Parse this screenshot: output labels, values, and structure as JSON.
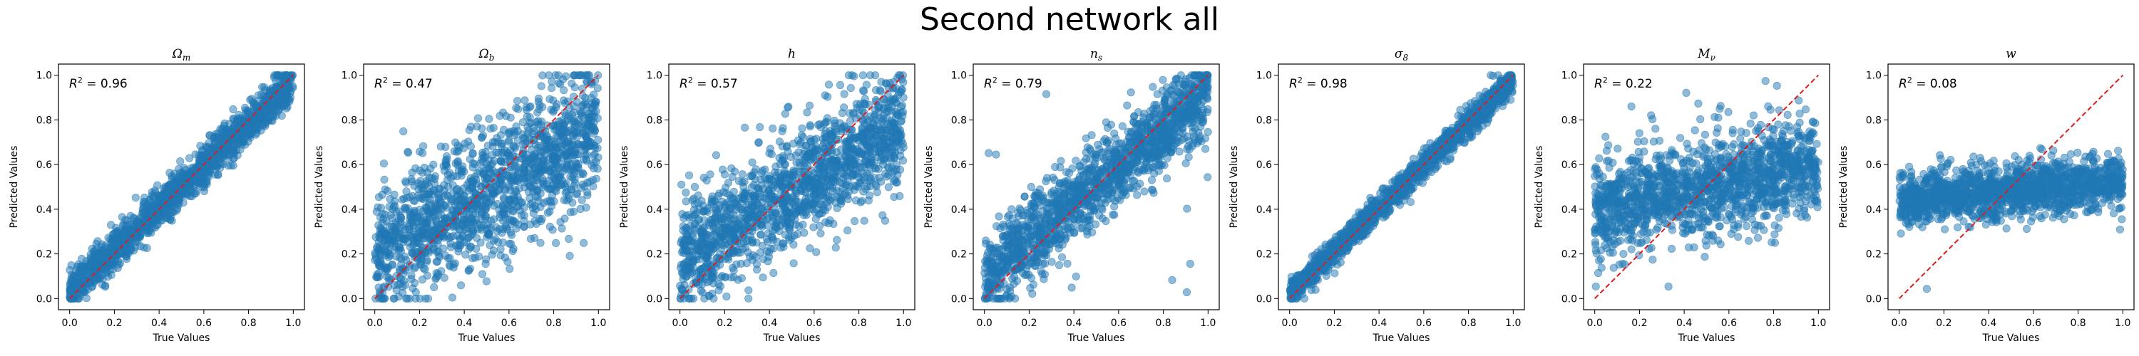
{
  "suptitle": "Second network all",
  "colors": {
    "points": "#1f77b4",
    "identity_line": "#e31a1c",
    "axes": "#000000"
  },
  "chart_data": [
    {
      "type": "scatter",
      "title": "Ωm",
      "title_html": "Ω<tspan font-size='12' dy='4'>m</tspan>",
      "r2_value": "0.96",
      "r2_text": "R² = 0.96",
      "xlabel": "True Values",
      "ylabel": "Predicted Values",
      "xlim": [
        -0.05,
        1.05
      ],
      "ylim": [
        -0.05,
        1.05
      ],
      "xticks": [
        "0.0",
        "0.2",
        "0.4",
        "0.6",
        "0.8",
        "1.0"
      ],
      "yticks": [
        "0.0",
        "0.2",
        "0.4",
        "0.6",
        "0.8",
        "1.0"
      ],
      "identity_line": {
        "x": [
          0,
          1
        ],
        "y": [
          0,
          1
        ]
      },
      "points": {
        "model": "linear",
        "slope": 0.94,
        "intercept": 0.03,
        "noise": 0.045,
        "outliers": 0.0,
        "x_range": [
          0,
          1
        ],
        "y_clip": [
          0,
          1
        ],
        "count": 1500,
        "seed": 1
      }
    },
    {
      "type": "scatter",
      "title": "Ωb",
      "title_html": "Ω<tspan font-size='12' dy='4'>b</tspan>",
      "r2_value": "0.47",
      "r2_text": "R² = 0.47",
      "xlabel": "True Values",
      "ylabel": "Predicted Values",
      "xlim": [
        -0.05,
        1.05
      ],
      "ylim": [
        -0.05,
        1.05
      ],
      "xticks": [
        "0.0",
        "0.2",
        "0.4",
        "0.6",
        "0.8",
        "1.0"
      ],
      "yticks": [
        "0.0",
        "0.2",
        "0.4",
        "0.6",
        "0.8",
        "1.0"
      ],
      "identity_line": {
        "x": [
          0,
          1
        ],
        "y": [
          0,
          1
        ]
      },
      "points": {
        "model": "linear",
        "slope": 0.55,
        "intercept": 0.2,
        "noise": 0.15,
        "outliers": 0.0,
        "x_range": [
          0,
          1
        ],
        "y_clip": [
          0,
          1
        ],
        "count": 1500,
        "seed": 2
      }
    },
    {
      "type": "scatter",
      "title": "h",
      "title_html": "h",
      "r2_value": "0.57",
      "r2_text": "R² = 0.57",
      "xlabel": "True Values",
      "ylabel": "Predicted Values",
      "xlim": [
        -0.05,
        1.05
      ],
      "ylim": [
        -0.05,
        1.05
      ],
      "xticks": [
        "0.0",
        "0.2",
        "0.4",
        "0.6",
        "0.8",
        "1.0"
      ],
      "yticks": [
        "0.0",
        "0.2",
        "0.4",
        "0.6",
        "0.8",
        "1.0"
      ],
      "identity_line": {
        "x": [
          0,
          1
        ],
        "y": [
          0,
          1
        ]
      },
      "points": {
        "model": "linear",
        "slope": 0.62,
        "intercept": 0.17,
        "noise": 0.13,
        "outliers": 0.0,
        "x_range": [
          0,
          1
        ],
        "y_clip": [
          0,
          1
        ],
        "count": 1500,
        "seed": 3
      }
    },
    {
      "type": "scatter",
      "title": "ns",
      "title_html": "n<tspan font-size='12' dy='4'>s</tspan>",
      "r2_value": "0.79",
      "r2_text": "R² = 0.79",
      "xlabel": "True Values",
      "ylabel": "Predicted Values",
      "xlim": [
        -0.05,
        1.05
      ],
      "ylim": [
        -0.05,
        1.05
      ],
      "xticks": [
        "0.0",
        "0.2",
        "0.4",
        "0.6",
        "0.8",
        "1.0"
      ],
      "yticks": [
        "0.0",
        "0.2",
        "0.4",
        "0.6",
        "0.8",
        "1.0"
      ],
      "identity_line": {
        "x": [
          0,
          1
        ],
        "y": [
          0,
          1
        ]
      },
      "points": {
        "model": "linear",
        "slope": 0.82,
        "intercept": 0.1,
        "noise": 0.09,
        "outliers": 0.02,
        "x_range": [
          0,
          1
        ],
        "y_clip": [
          0,
          1
        ],
        "count": 1500,
        "seed": 4
      }
    },
    {
      "type": "scatter",
      "title": "σ8",
      "title_html": "σ<tspan font-size='12' dy='4'>8</tspan>",
      "r2_value": "0.98",
      "r2_text": "R² = 0.98",
      "xlabel": "True Values",
      "ylabel": "Predicted Values",
      "xlim": [
        -0.05,
        1.05
      ],
      "ylim": [
        -0.05,
        1.05
      ],
      "xticks": [
        "0.0",
        "0.2",
        "0.4",
        "0.6",
        "0.8",
        "1.0"
      ],
      "yticks": [
        "0.0",
        "0.2",
        "0.4",
        "0.6",
        "0.8",
        "1.0"
      ],
      "identity_line": {
        "x": [
          0,
          1
        ],
        "y": [
          0,
          1
        ]
      },
      "points": {
        "model": "linear",
        "slope": 0.96,
        "intercept": 0.02,
        "noise": 0.03,
        "outliers": 0.0,
        "x_range": [
          0,
          1
        ],
        "y_clip": [
          0,
          1
        ],
        "count": 1500,
        "seed": 5
      }
    },
    {
      "type": "scatter",
      "title": "Mν",
      "title_html": "M<tspan font-size='12' dy='4'>ν</tspan>",
      "r2_value": "0.22",
      "r2_text": "R² = 0.22",
      "xlabel": "True Values",
      "ylabel": "Predicted Values",
      "xlim": [
        -0.05,
        1.05
      ],
      "ylim": [
        -0.05,
        1.05
      ],
      "xticks": [
        "0.0",
        "0.2",
        "0.4",
        "0.6",
        "0.8",
        "1.0"
      ],
      "yticks": [
        "0.0",
        "0.2",
        "0.4",
        "0.6",
        "0.8",
        "1.0"
      ],
      "identity_line": {
        "x": [
          0,
          1
        ],
        "y": [
          0,
          1
        ]
      },
      "points": {
        "model": "linear",
        "slope": 0.2,
        "intercept": 0.4,
        "noise": 0.11,
        "outliers": 0.01,
        "x_range": [
          0,
          1
        ],
        "y_clip": [
          0,
          1
        ],
        "count": 1500,
        "seed": 6
      }
    },
    {
      "type": "scatter",
      "title": "w",
      "title_html": "w",
      "r2_value": "0.08",
      "r2_text": "R² = 0.08",
      "xlabel": "True Values",
      "ylabel": "Predicted Values",
      "xlim": [
        -0.05,
        1.05
      ],
      "ylim": [
        -0.05,
        1.05
      ],
      "xticks": [
        "0.0",
        "0.2",
        "0.4",
        "0.6",
        "0.8",
        "1.0"
      ],
      "yticks": [
        "0.0",
        "0.2",
        "0.4",
        "0.6",
        "0.8",
        "1.0"
      ],
      "identity_line": {
        "x": [
          0,
          1
        ],
        "y": [
          0,
          1
        ]
      },
      "points": {
        "model": "linear",
        "slope": 0.08,
        "intercept": 0.44,
        "noise": 0.06,
        "outliers": 0.005,
        "x_range": [
          0,
          1
        ],
        "y_clip": [
          0,
          1
        ],
        "count": 1500,
        "seed": 7
      }
    }
  ]
}
